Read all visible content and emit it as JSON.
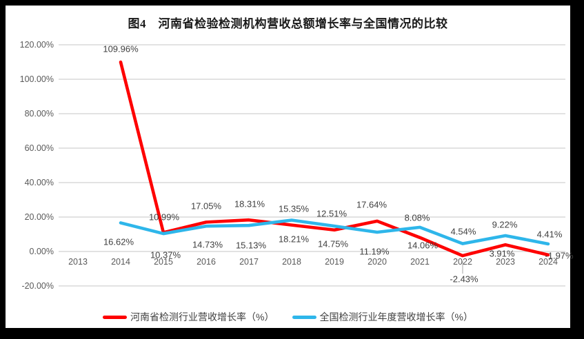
{
  "chart_data": {
    "type": "line",
    "title": "图4　河南省检验检测机构营收总额增长率与全国情况的比较",
    "categories": [
      "2013",
      "2014",
      "2015",
      "2016",
      "2017",
      "2018",
      "2019",
      "2020",
      "2021",
      "2022",
      "2023",
      "2024"
    ],
    "series": [
      {
        "name": "河南省检测行业营收增长率（%）",
        "color": "#fe0000",
        "values": [
          null,
          109.96,
          10.99,
          17.05,
          18.31,
          15.35,
          12.51,
          17.64,
          8.08,
          -2.43,
          3.91,
          -1.97
        ]
      },
      {
        "name": "全国检测行业年度营收增长率（%）",
        "color": "#2eb6ea",
        "values": [
          null,
          16.62,
          10.37,
          14.73,
          15.13,
          18.21,
          14.75,
          11.19,
          14.06,
          4.54,
          9.22,
          4.41
        ]
      }
    ],
    "y_axis": {
      "min": -20,
      "max": 120,
      "step": 20,
      "tick_suffix": "%",
      "decimals": 2
    },
    "x_axis_label": "",
    "ylabel": "",
    "grid": true,
    "gridline_color": "#d9d9d9",
    "legend_position": "bottom",
    "background_color": "#ffffff",
    "frame_color": "#000000"
  }
}
